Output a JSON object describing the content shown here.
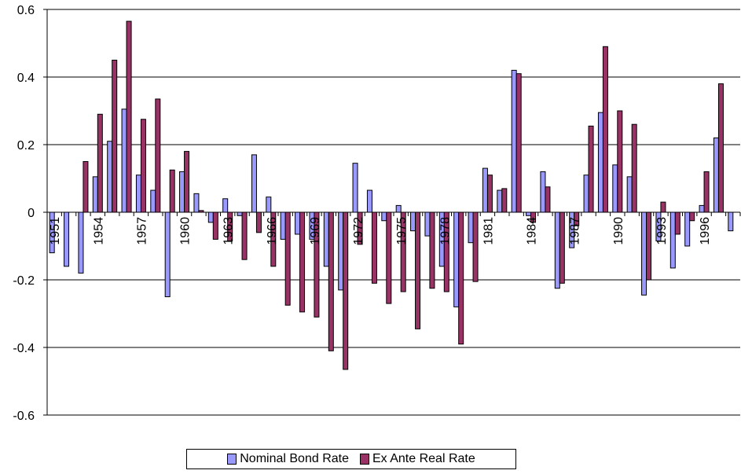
{
  "chart_data": {
    "type": "bar",
    "title": "",
    "xlabel": "",
    "ylabel": "",
    "ylim": [
      -0.6,
      0.6
    ],
    "yticks": [
      -0.6,
      -0.4,
      -0.2,
      0,
      0.2,
      0.4,
      0.6
    ],
    "ytick_labels": [
      "-0.6",
      "-0.4",
      "-0.2",
      "0",
      "0.2",
      "0.4",
      "0.6"
    ],
    "grid": true,
    "legend_position": "bottom",
    "categories": [
      1951,
      1952,
      1953,
      1954,
      1955,
      1956,
      1957,
      1958,
      1959,
      1960,
      1961,
      1962,
      1963,
      1964,
      1965,
      1966,
      1967,
      1968,
      1969,
      1970,
      1971,
      1972,
      1973,
      1974,
      1975,
      1976,
      1977,
      1978,
      1979,
      1980,
      1981,
      1982,
      1983,
      1984,
      1985,
      1986,
      1987,
      1988,
      1989,
      1990,
      1991,
      1992,
      1993,
      1994,
      1995,
      1996,
      1997,
      1998
    ],
    "xtick_labels": [
      "1951",
      "1954",
      "1957",
      "1960",
      "1963",
      "1966",
      "1969",
      "1972",
      "1975",
      "1978",
      "1981",
      "1984",
      "1987",
      "1990",
      "1993",
      "1996"
    ],
    "series": [
      {
        "name": "Nominal Bond Rate",
        "color": "#9999ff",
        "values": [
          -0.12,
          -0.16,
          -0.18,
          0.105,
          0.21,
          0.305,
          0.11,
          0.065,
          -0.25,
          0.12,
          0.055,
          -0.03,
          0.04,
          -0.01,
          0.17,
          0.045,
          -0.08,
          -0.065,
          -0.08,
          -0.16,
          -0.23,
          0.145,
          0.065,
          -0.025,
          0.02,
          -0.055,
          -0.07,
          -0.16,
          -0.28,
          -0.09,
          0.13,
          0.065,
          0.42,
          -0.01,
          0.12,
          -0.225,
          -0.105,
          0.11,
          0.295,
          0.14,
          0.105,
          -0.245,
          -0.085,
          -0.165,
          -0.1,
          0.02,
          0.22,
          -0.055
        ]
      },
      {
        "name": "Ex Ante Real Rate",
        "color": "#993366",
        "values": [
          0.0,
          0.0,
          0.15,
          0.29,
          0.45,
          0.565,
          0.275,
          0.335,
          0.125,
          0.18,
          0.005,
          -0.08,
          -0.085,
          -0.14,
          -0.06,
          -0.16,
          -0.275,
          -0.295,
          -0.31,
          -0.41,
          -0.465,
          -0.095,
          -0.21,
          -0.27,
          -0.235,
          -0.345,
          -0.225,
          -0.235,
          -0.39,
          -0.205,
          0.11,
          0.07,
          0.41,
          -0.03,
          0.075,
          -0.21,
          -0.04,
          0.255,
          0.49,
          0.3,
          0.26,
          -0.2,
          0.03,
          -0.065,
          -0.025,
          0.12,
          0.38,
          0.0
        ]
      }
    ]
  }
}
